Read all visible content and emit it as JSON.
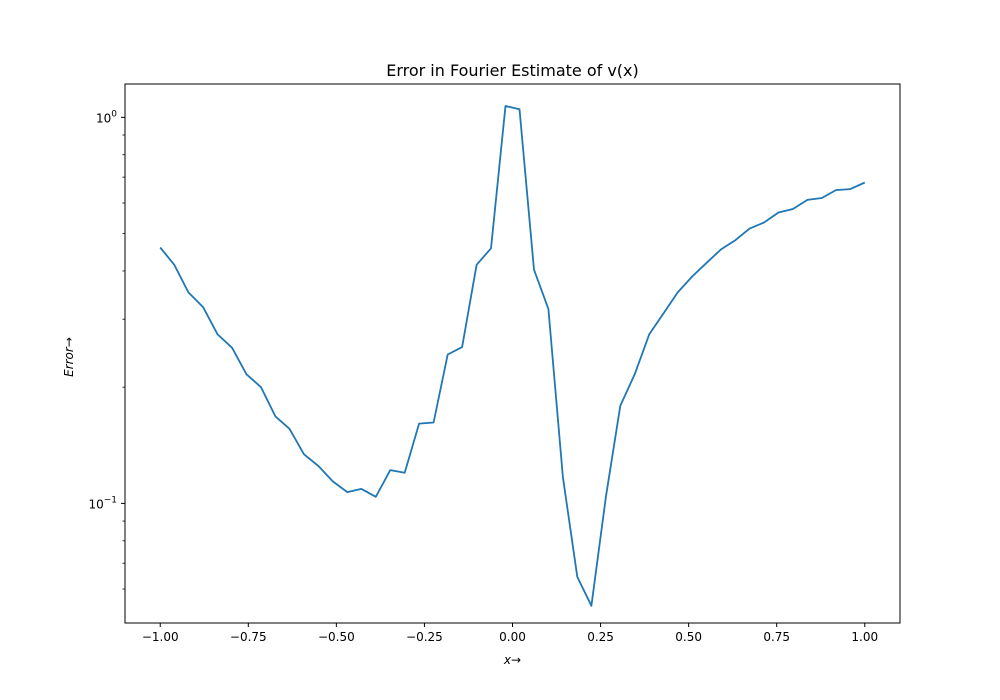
{
  "chart_data": {
    "type": "line",
    "title": "Error in Fourier Estimate of v(x)",
    "xlabel": "x→",
    "ylabel": "Error→",
    "yscale": "log",
    "xlim": [
      -1.1,
      1.1
    ],
    "ylim": [
      0.049,
      1.22
    ],
    "grid": false,
    "x_ticks": [
      {
        "value": -1.0,
        "label": "−1.00"
      },
      {
        "value": -0.75,
        "label": "−0.75"
      },
      {
        "value": -0.5,
        "label": "−0.50"
      },
      {
        "value": -0.25,
        "label": "−0.25"
      },
      {
        "value": 0.0,
        "label": "0.00"
      },
      {
        "value": 0.25,
        "label": "0.25"
      },
      {
        "value": 0.5,
        "label": "0.50"
      },
      {
        "value": 0.75,
        "label": "0.75"
      },
      {
        "value": 1.0,
        "label": "1.00"
      }
    ],
    "y_major_ticks": [
      {
        "value": 1.0,
        "base": "10",
        "exp": "0"
      },
      {
        "value": 0.1,
        "base": "10",
        "exp": "−1"
      }
    ],
    "y_minor_ticks": [
      0.06,
      0.07,
      0.08,
      0.09,
      0.2,
      0.3,
      0.4,
      0.5,
      0.6,
      0.7,
      0.8,
      0.9
    ],
    "series": [
      {
        "color": "#1f77b4",
        "x": [
          -1.0,
          -0.96,
          -0.92,
          -0.878,
          -0.837,
          -0.796,
          -0.755,
          -0.714,
          -0.673,
          -0.633,
          -0.592,
          -0.551,
          -0.51,
          -0.469,
          -0.429,
          -0.388,
          -0.347,
          -0.306,
          -0.265,
          -0.224,
          -0.184,
          -0.143,
          -0.102,
          -0.061,
          -0.02,
          0.02,
          0.061,
          0.102,
          0.143,
          0.184,
          0.224,
          0.265,
          0.306,
          0.347,
          0.388,
          0.429,
          0.469,
          0.51,
          0.551,
          0.592,
          0.633,
          0.673,
          0.714,
          0.755,
          0.796,
          0.837,
          0.878,
          0.918,
          0.959,
          1.0
        ],
        "y": [
          0.46,
          0.415,
          0.352,
          0.322,
          0.274,
          0.253,
          0.216,
          0.2,
          0.168,
          0.156,
          0.134,
          0.125,
          0.114,
          0.107,
          0.109,
          0.104,
          0.122,
          0.12,
          0.161,
          0.162,
          0.243,
          0.254,
          0.415,
          0.458,
          1.07,
          1.05,
          0.403,
          0.319,
          0.117,
          0.0645,
          0.0543,
          0.104,
          0.179,
          0.216,
          0.274,
          0.311,
          0.352,
          0.387,
          0.42,
          0.455,
          0.481,
          0.515,
          0.534,
          0.567,
          0.579,
          0.611,
          0.618,
          0.648,
          0.652,
          0.678
        ]
      }
    ]
  }
}
